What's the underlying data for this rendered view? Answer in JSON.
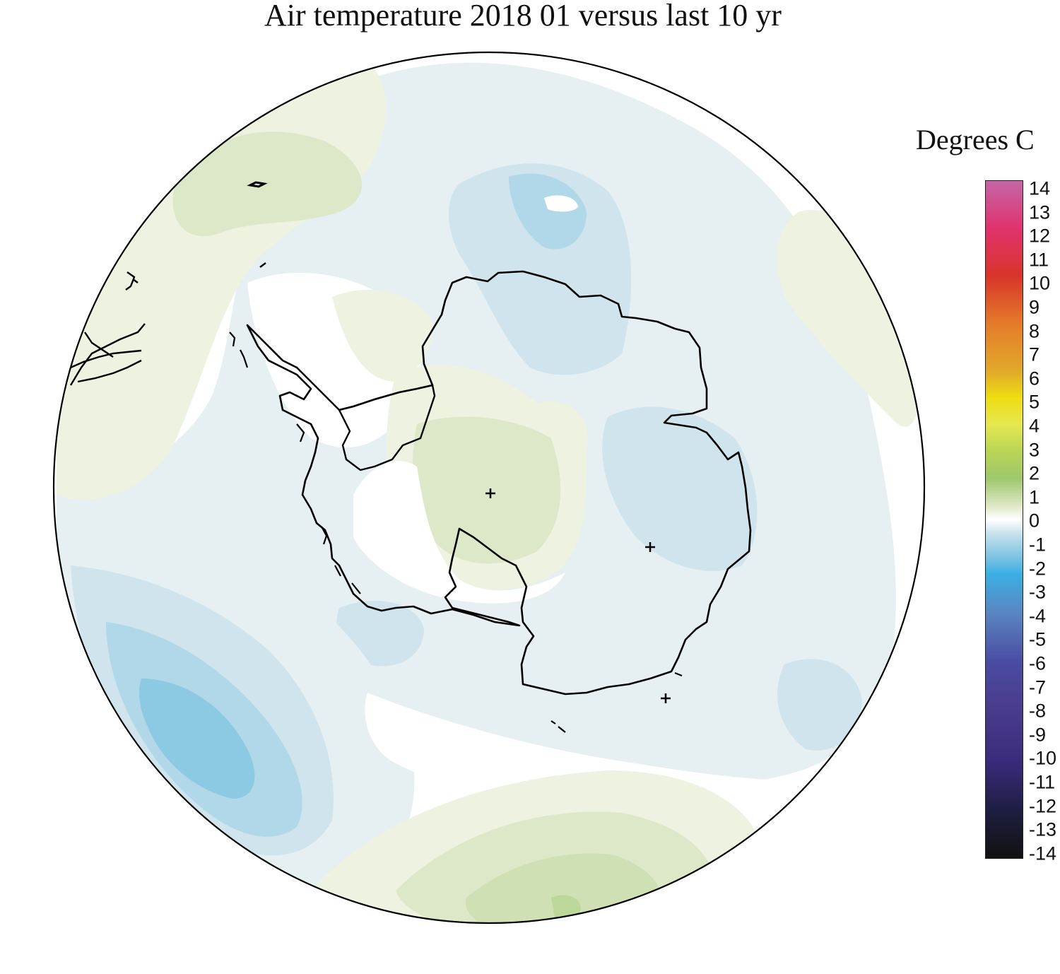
{
  "title": "Air temperature 2018 01 versus last 10 yr",
  "legend": {
    "title": "Degrees C",
    "ticks": [
      "14",
      "13",
      "12",
      "11",
      "10",
      "9",
      "8",
      "7",
      "6",
      "5",
      "4",
      "3",
      "2",
      "1",
      "0",
      "-1",
      "-2",
      "-3",
      "-4",
      "-5",
      "-6",
      "-7",
      "-8",
      "-9",
      "-10",
      "-11",
      "-12",
      "-13",
      "-14"
    ],
    "range": [
      -14,
      14
    ],
    "colors": {
      "pos14": "#c466a6",
      "pos12": "#e0336e",
      "pos10": "#d8342a",
      "pos8": "#e57a2a",
      "pos6": "#e1a82a",
      "pos5": "#eedd10",
      "pos4": "#e6e850",
      "pos3": "#b9d456",
      "pos2": "#9fc86c",
      "pos1": "#dfe8c6",
      "zero": "#ffffff",
      "neg1": "#c9e3ec",
      "neg2": "#72bfe2",
      "neg3": "#3ab0e4",
      "neg4": "#5a84c0",
      "neg6": "#4a4ca3",
      "neg8": "#4a3c8c",
      "neg10": "#3a2a7a",
      "neg12": "#1e1e42",
      "neg14": "#111111"
    }
  },
  "map": {
    "projection": "south polar stereographic",
    "anomaly_colors": {
      "plus_0_5": "#eef2e0",
      "plus_1": "#dde8c8",
      "plus_1_5": "#cfe0b4",
      "plus_2": "#bcd79a",
      "minus_0_5": "#e6eff2",
      "minus_1": "#cfe4ec",
      "minus_1_5": "#b1d8e8",
      "minus_2": "#8cc9e2",
      "coastline": "#000000",
      "outline": "#000000"
    }
  }
}
